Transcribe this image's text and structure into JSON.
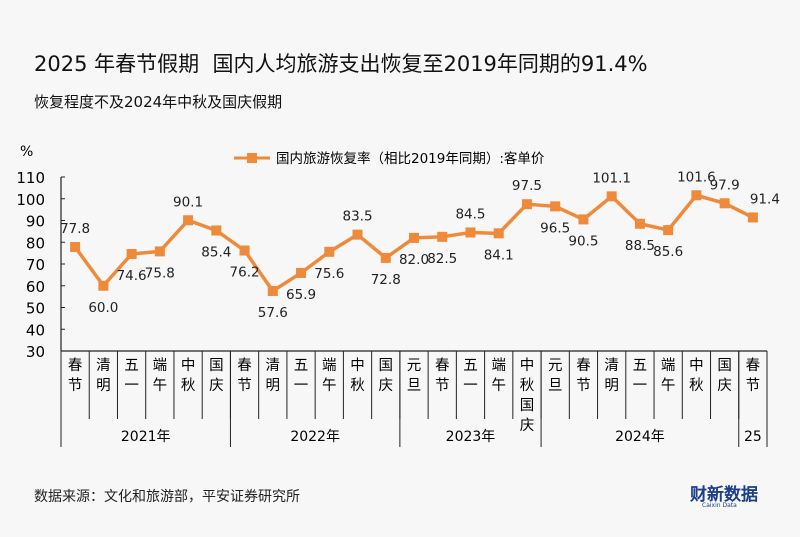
{
  "title": "2025 年春节假期  国内人均旅游支出恢复至2019年同期的91.4%",
  "subtitle": "恢复程度不及2024年中秋及国庆假期",
  "source": "数据来源：文化和旅游部，平安证券研究所",
  "logo": "财新数据",
  "logo_sub": "Caixin Data",
  "colors": {
    "line": "#ee8a3a",
    "axis": "#222222"
  },
  "chart_data": {
    "type": "line",
    "title": "",
    "ylabel": "%",
    "ylim": [
      30,
      110
    ],
    "yticks": [
      30,
      40,
      50,
      60,
      70,
      80,
      90,
      100,
      110
    ],
    "grid": false,
    "legend_position": "top-center",
    "categories": [
      "春节",
      "清明",
      "五一",
      "端午",
      "中秋",
      "国庆",
      "春节",
      "清明",
      "五一",
      "端午",
      "中秋",
      "国庆",
      "元旦",
      "春节",
      "五一",
      "端午",
      "中秋国庆",
      "元旦",
      "春节",
      "清明",
      "五一",
      "端午",
      "中秋",
      "国庆",
      "春节"
    ],
    "groups": [
      {
        "label": "2021年",
        "count": 6
      },
      {
        "label": "2022年",
        "count": 6
      },
      {
        "label": "2023年",
        "count": 5
      },
      {
        "label": "2024年",
        "count": 7
      },
      {
        "label": "25",
        "count": 1
      }
    ],
    "series": [
      {
        "name": "国内旅游恢复率（相比2019年同期）:客单价",
        "values": [
          77.8,
          60.0,
          74.6,
          75.8,
          90.1,
          85.4,
          76.2,
          57.6,
          65.9,
          75.6,
          83.5,
          72.8,
          82.0,
          82.5,
          84.5,
          84.1,
          97.5,
          96.5,
          90.5,
          101.1,
          88.5,
          85.6,
          101.6,
          97.9,
          91.4
        ]
      }
    ]
  }
}
